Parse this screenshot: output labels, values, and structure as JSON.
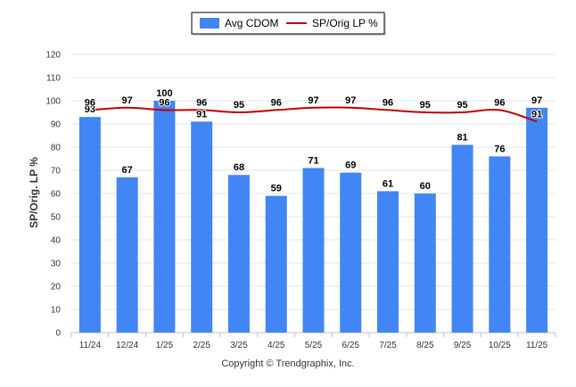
{
  "chart_data": {
    "type": "bar",
    "categories": [
      "11/24",
      "12/24",
      "1/25",
      "2/25",
      "3/25",
      "4/25",
      "5/25",
      "6/25",
      "7/25",
      "8/25",
      "9/25",
      "10/25",
      "11/25"
    ],
    "series": [
      {
        "name": "Avg CDOM",
        "type": "bar",
        "color": "#4285f4",
        "values": [
          93,
          67,
          100,
          91,
          68,
          59,
          71,
          69,
          61,
          60,
          81,
          76,
          97
        ]
      },
      {
        "name": "SP/Orig LP %",
        "type": "line",
        "color": "#c00000",
        "values": [
          96,
          97,
          96,
          96,
          95,
          96,
          97,
          97,
          96,
          95,
          95,
          96,
          91
        ]
      }
    ],
    "ylabel": "SP/Orig. LP %",
    "ylim": [
      0,
      120
    ],
    "yticks": [
      0,
      10,
      20,
      30,
      40,
      50,
      60,
      70,
      80,
      90,
      100,
      110,
      120
    ],
    "grid": true,
    "legend_position": "top-center"
  },
  "copyright": "Copyright © Trendgraphix, Inc."
}
